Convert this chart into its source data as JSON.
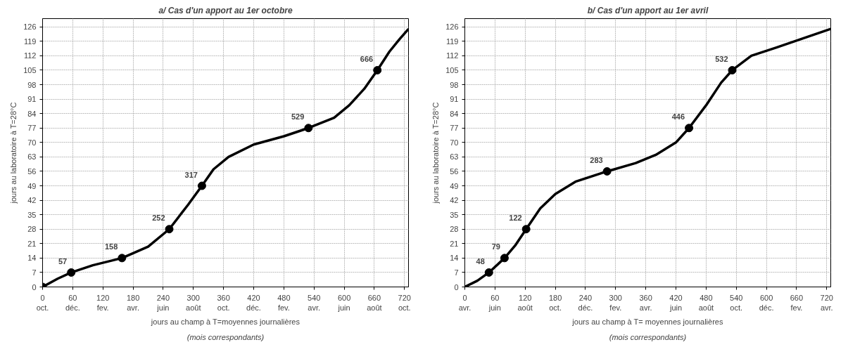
{
  "chart_data": [
    {
      "type": "line",
      "title": "a/ Cas d'un apport au 1er octobre",
      "xlabel": "jours au champ à T=moyennes journalières",
      "ylabel": "jours au laboratoire à T=28°C",
      "annotations": [
        "(mois correspondants)",
        {
          "text": "57",
          "x": 57,
          "y": 7
        },
        {
          "text": "158",
          "x": 158,
          "y": 14
        },
        {
          "text": "252",
          "x": 252,
          "y": 28
        },
        {
          "text": "317",
          "x": 317,
          "y": 49
        },
        {
          "text": "529",
          "x": 529,
          "y": 77
        },
        {
          "text": "666",
          "x": 666,
          "y": 105
        }
      ],
      "xlim": [
        0,
        728
      ],
      "ylim": [
        0,
        130
      ],
      "xticks": [
        {
          "value": 0,
          "label": "0\noct."
        },
        {
          "value": 60,
          "label": "60\ndéc."
        },
        {
          "value": 120,
          "label": "120\nfev."
        },
        {
          "value": 180,
          "label": "180\navr."
        },
        {
          "value": 240,
          "label": "240\njuin"
        },
        {
          "value": 300,
          "label": "300\naoût"
        },
        {
          "value": 360,
          "label": "360\noct."
        },
        {
          "value": 420,
          "label": "420\ndéc."
        },
        {
          "value": 480,
          "label": "480\nfev."
        },
        {
          "value": 540,
          "label": "540\navr."
        },
        {
          "value": 600,
          "label": "600\njuin"
        },
        {
          "value": 660,
          "label": "660\naoût"
        },
        {
          "value": 720,
          "label": "720\noct."
        }
      ],
      "yticks": [
        0,
        7,
        14,
        21,
        28,
        35,
        42,
        49,
        56,
        63,
        70,
        77,
        84,
        91,
        98,
        105,
        112,
        119,
        126
      ],
      "grid": true,
      "series": [
        {
          "marker": "none",
          "color": "#000000",
          "x": [
            0,
            30,
            57,
            100,
            158,
            210,
            252,
            290,
            317,
            340,
            370,
            420,
            480,
            529,
            580,
            610,
            640,
            666,
            690,
            710,
            728
          ],
          "values": [
            0,
            4,
            7,
            10.5,
            14,
            19.5,
            28,
            40,
            49,
            57,
            63,
            69,
            73,
            77,
            82,
            88,
            96,
            105,
            114,
            120,
            125
          ]
        },
        {
          "type": "scatter",
          "marker": "circle",
          "color": "#000000",
          "x": [
            0,
            57,
            158,
            252,
            317,
            529,
            666
          ],
          "values": [
            0,
            7,
            14,
            28,
            49,
            77,
            105
          ]
        }
      ]
    },
    {
      "type": "line",
      "title": "b/ Cas d'un apport au 1er avril",
      "xlabel": "jours au champ à T= moyennes journalières",
      "ylabel": "jours au laboratoire à T=28°C",
      "annotations": [
        "(mois correspondants)",
        {
          "text": "48",
          "x": 48,
          "y": 7
        },
        {
          "text": "79",
          "x": 79,
          "y": 14
        },
        {
          "text": "122",
          "x": 122,
          "y": 28
        },
        {
          "text": "283",
          "x": 283,
          "y": 56
        },
        {
          "text": "446",
          "x": 446,
          "y": 77
        },
        {
          "text": "532",
          "x": 532,
          "y": 105
        }
      ],
      "xlim": [
        0,
        728
      ],
      "ylim": [
        0,
        130
      ],
      "xticks": [
        {
          "value": 0,
          "label": "0\navr."
        },
        {
          "value": 60,
          "label": "60\njuin"
        },
        {
          "value": 120,
          "label": "120\naoût"
        },
        {
          "value": 180,
          "label": "180\noct."
        },
        {
          "value": 240,
          "label": "240\ndéc."
        },
        {
          "value": 300,
          "label": "300\nfev."
        },
        {
          "value": 360,
          "label": "360\navr."
        },
        {
          "value": 420,
          "label": "420\njuin"
        },
        {
          "value": 480,
          "label": "480\naoût"
        },
        {
          "value": 540,
          "label": "540\noct."
        },
        {
          "value": 600,
          "label": "600\ndéc."
        },
        {
          "value": 660,
          "label": "660\nfev."
        },
        {
          "value": 720,
          "label": "720\navr."
        }
      ],
      "yticks": [
        0,
        7,
        14,
        21,
        28,
        35,
        42,
        49,
        56,
        63,
        70,
        77,
        84,
        91,
        98,
        105,
        112,
        119,
        126
      ],
      "grid": true,
      "series": [
        {
          "marker": "none",
          "color": "#000000",
          "x": [
            0,
            25,
            48,
            79,
            100,
            122,
            150,
            180,
            220,
            283,
            340,
            380,
            420,
            446,
            480,
            510,
            532,
            570,
            620,
            680,
            728
          ],
          "values": [
            0,
            3,
            7,
            14,
            20,
            28,
            38,
            45,
            51,
            56,
            60,
            64,
            70,
            77,
            88,
            99,
            105,
            112,
            116,
            121,
            125
          ]
        },
        {
          "type": "scatter",
          "marker": "circle",
          "color": "#000000",
          "x": [
            48,
            79,
            122,
            283,
            446,
            532
          ],
          "values": [
            7,
            14,
            28,
            56,
            77,
            105
          ]
        }
      ]
    }
  ]
}
